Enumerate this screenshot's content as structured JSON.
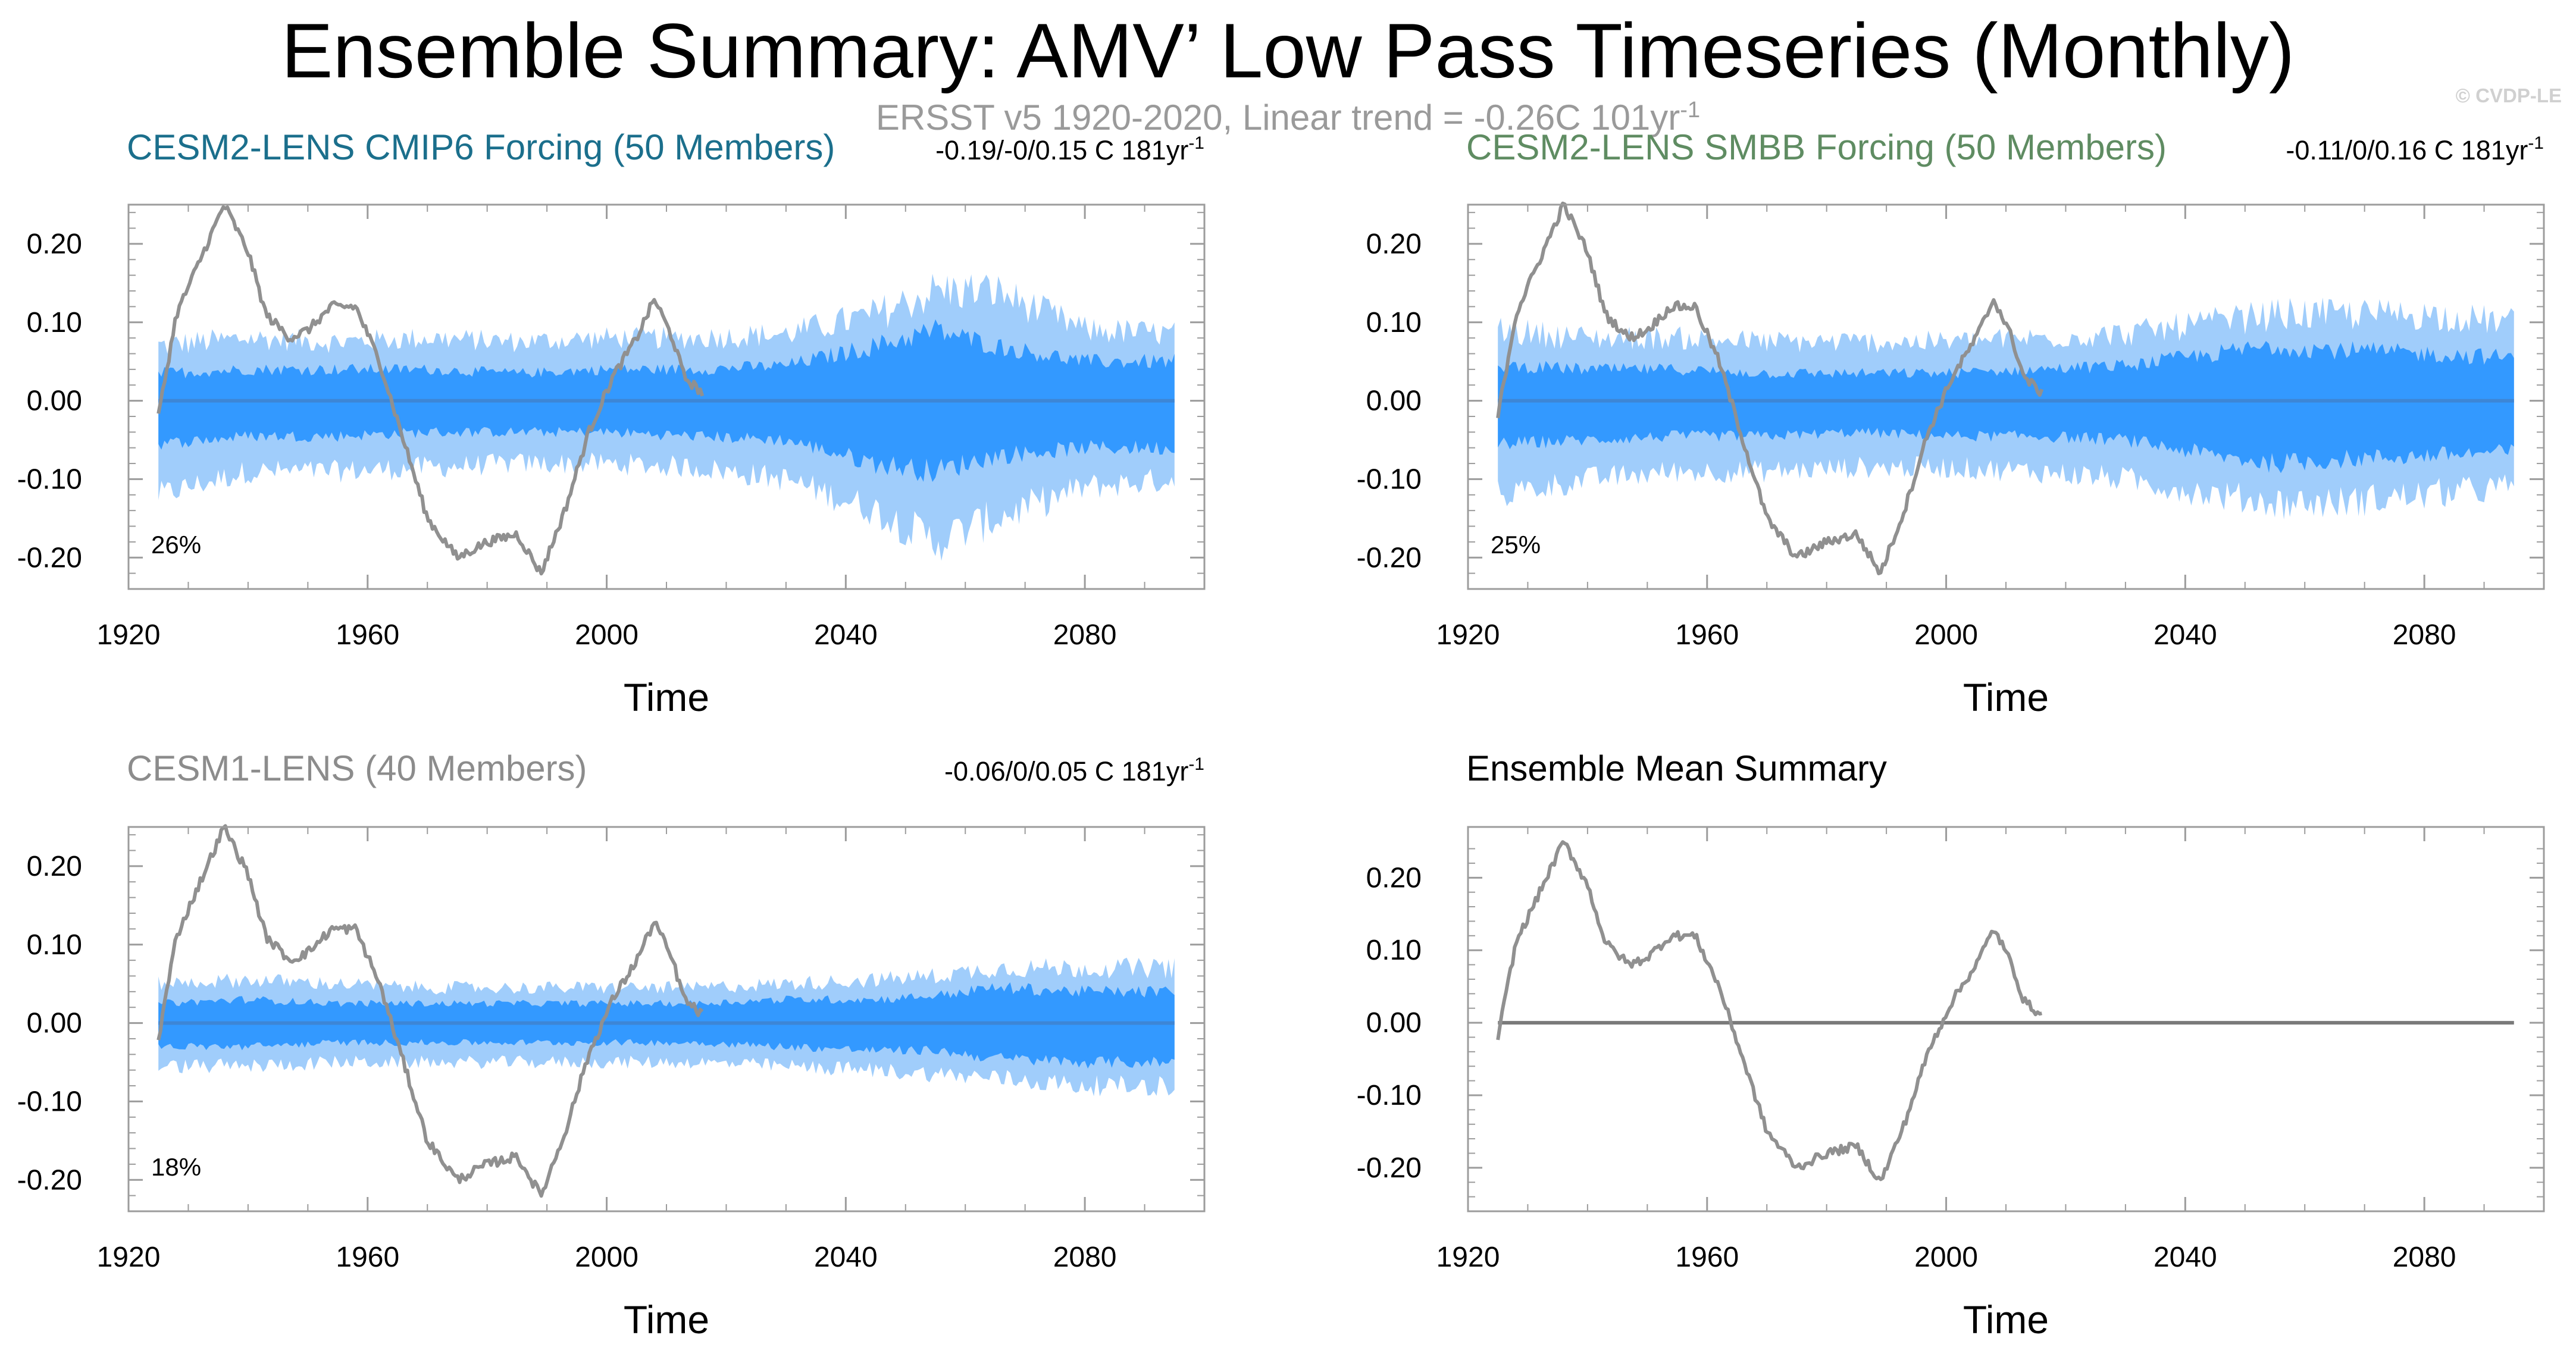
{
  "figure": {
    "title": "Ensemble Summary: AMV’ Low Pass Timeseries (Monthly)",
    "subtitle": "ERSST v5 1920-2020, Linear trend = -0.26C 101yr",
    "subtitle_sup": "-1",
    "credit": "© CVDP-LE"
  },
  "colors": {
    "inner_band": "#3399ff",
    "outer_band": "#a0cdfb",
    "ensemble_mean": "#3d86d6",
    "observations": "#909090",
    "ensemble_mean_summary": "#7a7a7a",
    "axis": "#9c9c9c",
    "title_cesm2_cmip6": "#1b6f8c",
    "title_cesm2_smbb": "#5f8c62",
    "title_cesm1": "#8c8c8c",
    "title_summary": "#000000"
  },
  "chart_data": [
    {
      "type": "area",
      "panel": "cesm2-lens-cmip6",
      "title": "CESM2-LENS CMIP6 Forcing (50 Members)",
      "trend_text": "-0.19/-0/0.15 C 181yr",
      "trend_sup": "-1",
      "pct": "26%",
      "xlabel": "Time",
      "xlim": [
        1920,
        2100
      ],
      "ylim": [
        -0.24,
        0.25
      ],
      "xticks": [
        "1920",
        "1960",
        "2000",
        "2040",
        "2080"
      ],
      "yticks": [
        "0.20",
        "0.10",
        "0.00",
        "-0.10",
        "-0.20"
      ],
      "band_years": [
        1925,
        1940,
        1955,
        1970,
        1985,
        2000,
        2015,
        2030,
        2045,
        2055,
        2065,
        2080,
        2095
      ],
      "outer_upper": [
        0.07,
        0.08,
        0.075,
        0.08,
        0.075,
        0.08,
        0.08,
        0.085,
        0.11,
        0.14,
        0.14,
        0.09,
        0.085
      ],
      "outer_lower": [
        -0.12,
        -0.09,
        -0.09,
        -0.085,
        -0.08,
        -0.08,
        -0.085,
        -0.1,
        -0.14,
        -0.18,
        -0.15,
        -0.11,
        -0.1
      ],
      "inner_upper": [
        0.035,
        0.04,
        0.04,
        0.04,
        0.035,
        0.04,
        0.04,
        0.045,
        0.07,
        0.09,
        0.07,
        0.05,
        0.05
      ],
      "inner_lower": [
        -0.055,
        -0.045,
        -0.045,
        -0.04,
        -0.04,
        -0.04,
        -0.045,
        -0.05,
        -0.08,
        -0.09,
        -0.07,
        -0.06,
        -0.06
      ],
      "mean": [
        0.0,
        0.0
      ],
      "mean_years": [
        1925,
        2095
      ],
      "obs_years": [
        1925,
        1928,
        1932,
        1936,
        1940,
        1943,
        1947,
        1950,
        1954,
        1958,
        1962,
        1966,
        1970,
        1975,
        1980,
        1985,
        1989,
        1993,
        1997,
        2001,
        2005,
        2008,
        2011,
        2013,
        2016
      ],
      "obs_values": [
        -0.02,
        0.11,
        0.18,
        0.25,
        0.19,
        0.11,
        0.08,
        0.09,
        0.12,
        0.12,
        0.05,
        -0.05,
        -0.15,
        -0.2,
        -0.18,
        -0.17,
        -0.22,
        -0.14,
        -0.04,
        0.03,
        0.08,
        0.13,
        0.08,
        0.03,
        0.01
      ]
    },
    {
      "type": "area",
      "panel": "cesm2-lens-smbb",
      "title": "CESM2-LENS SMBB Forcing (50 Members)",
      "trend_text": "-0.11/0/0.16 C 181yr",
      "trend_sup": "-1",
      "pct": "25%",
      "xlabel": "Time",
      "xlim": [
        1920,
        2100
      ],
      "ylim": [
        -0.24,
        0.25
      ],
      "xticks": [
        "1920",
        "1960",
        "2000",
        "2040",
        "2080"
      ],
      "yticks": [
        "0.20",
        "0.10",
        "0.00",
        "-0.10",
        "-0.20"
      ],
      "band_years": [
        1925,
        1940,
        1955,
        1970,
        1985,
        2000,
        2015,
        2030,
        2045,
        2055,
        2065,
        2080,
        2095
      ],
      "outer_upper": [
        0.09,
        0.08,
        0.08,
        0.075,
        0.075,
        0.075,
        0.08,
        0.085,
        0.1,
        0.11,
        0.11,
        0.11,
        0.1
      ],
      "outer_lower": [
        -0.12,
        -0.1,
        -0.09,
        -0.09,
        -0.085,
        -0.085,
        -0.09,
        -0.1,
        -0.12,
        -0.13,
        -0.13,
        -0.12,
        -0.11
      ],
      "inner_upper": [
        0.045,
        0.04,
        0.04,
        0.035,
        0.035,
        0.035,
        0.04,
        0.045,
        0.06,
        0.07,
        0.065,
        0.06,
        0.055
      ],
      "inner_lower": [
        -0.055,
        -0.05,
        -0.045,
        -0.045,
        -0.04,
        -0.045,
        -0.045,
        -0.05,
        -0.07,
        -0.08,
        -0.075,
        -0.07,
        -0.065
      ],
      "mean": [
        0.0,
        0.0
      ],
      "mean_years": [
        1925,
        2095
      ],
      "obs_years": [
        1925,
        1928,
        1932,
        1936,
        1940,
        1943,
        1947,
        1950,
        1954,
        1958,
        1962,
        1966,
        1970,
        1975,
        1980,
        1985,
        1989,
        1993,
        1997,
        2001,
        2005,
        2008,
        2011,
        2013,
        2016
      ],
      "obs_values": [
        -0.02,
        0.11,
        0.18,
        0.25,
        0.19,
        0.11,
        0.08,
        0.09,
        0.12,
        0.12,
        0.05,
        -0.05,
        -0.15,
        -0.2,
        -0.18,
        -0.17,
        -0.22,
        -0.14,
        -0.04,
        0.03,
        0.08,
        0.13,
        0.08,
        0.03,
        0.01
      ]
    },
    {
      "type": "area",
      "panel": "cesm1-lens",
      "title": "CESM1-LENS (40 Members)",
      "trend_text": "-0.06/0/0.05 C 181yr",
      "trend_sup": "-1",
      "pct": "18%",
      "xlabel": "Time",
      "xlim": [
        1920,
        2100
      ],
      "ylim": [
        -0.24,
        0.25
      ],
      "xticks": [
        "1920",
        "1960",
        "2000",
        "2040",
        "2080"
      ],
      "yticks": [
        "0.20",
        "0.10",
        "0.00",
        "-0.10",
        "-0.20"
      ],
      "band_years": [
        1925,
        1940,
        1955,
        1970,
        1985,
        2000,
        2015,
        2030,
        2045,
        2055,
        2065,
        2080,
        2095
      ],
      "outer_upper": [
        0.05,
        0.055,
        0.05,
        0.045,
        0.045,
        0.045,
        0.045,
        0.05,
        0.055,
        0.06,
        0.07,
        0.07,
        0.07
      ],
      "outer_lower": [
        -0.055,
        -0.055,
        -0.05,
        -0.05,
        -0.05,
        -0.05,
        -0.05,
        -0.055,
        -0.06,
        -0.065,
        -0.07,
        -0.08,
        -0.08
      ],
      "inner_upper": [
        0.025,
        0.03,
        0.025,
        0.025,
        0.025,
        0.025,
        0.025,
        0.03,
        0.03,
        0.035,
        0.045,
        0.04,
        0.04
      ],
      "inner_lower": [
        -0.03,
        -0.03,
        -0.025,
        -0.025,
        -0.025,
        -0.025,
        -0.025,
        -0.03,
        -0.035,
        -0.035,
        -0.045,
        -0.05,
        -0.05
      ],
      "mean": [
        0.0,
        0.0
      ],
      "mean_years": [
        1925,
        2095
      ],
      "obs_years": [
        1925,
        1928,
        1932,
        1936,
        1940,
        1943,
        1947,
        1950,
        1954,
        1958,
        1962,
        1966,
        1970,
        1975,
        1980,
        1985,
        1989,
        1993,
        1997,
        2001,
        2005,
        2008,
        2011,
        2013,
        2016
      ],
      "obs_values": [
        -0.02,
        0.11,
        0.18,
        0.25,
        0.19,
        0.11,
        0.08,
        0.09,
        0.12,
        0.12,
        0.05,
        -0.05,
        -0.15,
        -0.2,
        -0.18,
        -0.17,
        -0.22,
        -0.14,
        -0.04,
        0.03,
        0.08,
        0.13,
        0.08,
        0.03,
        0.01
      ]
    },
    {
      "type": "line",
      "panel": "ensemble-mean-summary",
      "title": "Ensemble Mean Summary",
      "trend_text": "",
      "trend_sup": "",
      "pct": "",
      "xlabel": "Time",
      "xlim": [
        1920,
        2100
      ],
      "ylim": [
        -0.26,
        0.27
      ],
      "xticks": [
        "1920",
        "1960",
        "2000",
        "2040",
        "2080"
      ],
      "yticks": [
        "0.20",
        "0.10",
        "0.00",
        "-0.10",
        "-0.20"
      ],
      "mean": [
        0.0,
        0.0
      ],
      "mean_years": [
        1925,
        2095
      ],
      "obs_years": [
        1925,
        1928,
        1932,
        1936,
        1940,
        1943,
        1947,
        1950,
        1954,
        1958,
        1962,
        1966,
        1970,
        1975,
        1980,
        1985,
        1989,
        1993,
        1997,
        2001,
        2005,
        2008,
        2011,
        2013,
        2016
      ],
      "obs_values": [
        -0.02,
        0.11,
        0.18,
        0.25,
        0.19,
        0.11,
        0.08,
        0.09,
        0.12,
        0.12,
        0.05,
        -0.05,
        -0.15,
        -0.2,
        -0.18,
        -0.17,
        -0.22,
        -0.14,
        -0.04,
        0.03,
        0.08,
        0.13,
        0.08,
        0.03,
        0.01
      ]
    }
  ]
}
